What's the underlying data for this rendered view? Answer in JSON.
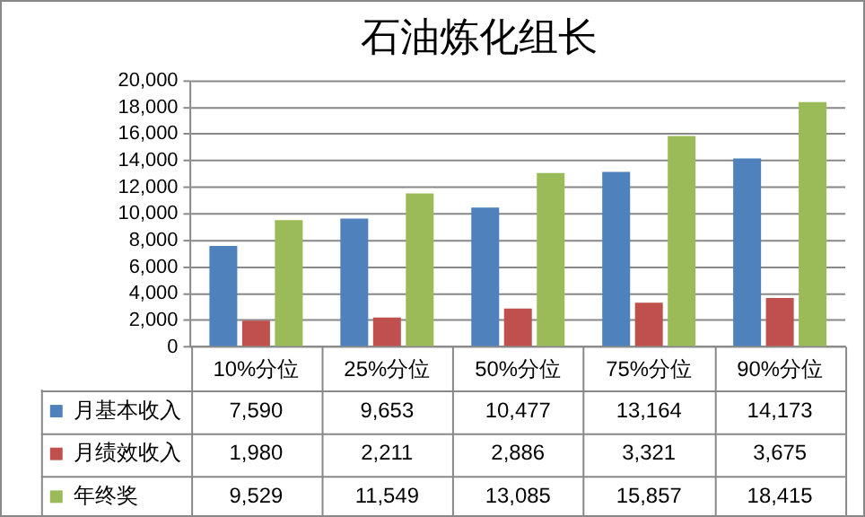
{
  "chart_data": {
    "type": "bar",
    "title": "石油炼化组长",
    "categories": [
      "10%分位",
      "25%分位",
      "50%分位",
      "75%分位",
      "90%分位"
    ],
    "series": [
      {
        "name": "月基本收入",
        "color": "#4f81bd",
        "values": [
          7590,
          9653,
          10477,
          13164,
          14173
        ],
        "value_labels": [
          "7,590",
          "9,653",
          "10,477",
          "13,164",
          "14,173"
        ]
      },
      {
        "name": "月绩效收入",
        "color": "#c0504d",
        "values": [
          1980,
          2211,
          2886,
          3321,
          3675
        ],
        "value_labels": [
          "1,980",
          "2,211",
          "2,886",
          "3,321",
          "3,675"
        ]
      },
      {
        "name": "年终奖",
        "color": "#9bbb59",
        "values": [
          9529,
          11549,
          13085,
          15857,
          18415
        ],
        "value_labels": [
          "9,529",
          "11,549",
          "13,085",
          "15,857",
          "18,415"
        ]
      }
    ],
    "ylim": [
      0,
      20000
    ],
    "yticks": [
      0,
      {
        "value": 2000,
        "label": "2,000"
      },
      {
        "value": 4000,
        "label": "4,000"
      },
      {
        "value": 6000,
        "label": "6,000"
      },
      {
        "value": 8000,
        "label": "8,000"
      },
      {
        "value": 10000,
        "label": "10,000"
      },
      {
        "value": 12000,
        "label": "12,000"
      },
      {
        "value": 14000,
        "label": "14,000"
      },
      {
        "value": 16000,
        "label": "16,000"
      },
      {
        "value": 18000,
        "label": "18,000"
      },
      {
        "value": 20000,
        "label": "20,000"
      }
    ],
    "grid": "y",
    "legend": "bottom"
  }
}
